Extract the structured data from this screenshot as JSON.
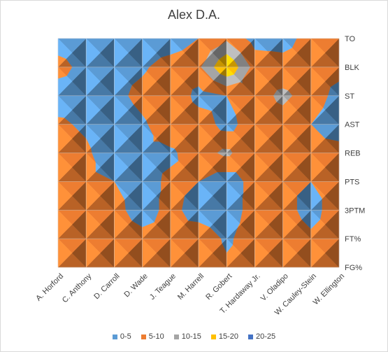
{
  "chart_data": {
    "type": "heatmap",
    "subtype": "contour",
    "title": "Alex D.A.",
    "xlabel": "",
    "ylabel": "",
    "categories": [
      "A. Horford",
      "C. Anthony",
      "D. Carroll",
      "D. Wade",
      "J. Teague",
      "M. Harrell",
      "R. Gobert",
      "T. Hardaway Jr.",
      "V. Oladipo",
      "W. Cauley-Stein",
      "W. Ellington"
    ],
    "y_categories": [
      "FG%",
      "FT%",
      "3PTM",
      "PTS",
      "REB",
      "AST",
      "ST",
      "BLK",
      "TO"
    ],
    "legend_position": "bottom",
    "grid": true,
    "bands": [
      {
        "label": "0-5",
        "min": 0,
        "max": 5,
        "color": "#5b9bd5"
      },
      {
        "label": "5-10",
        "min": 5,
        "max": 10,
        "color": "#ed7d31"
      },
      {
        "label": "10-15",
        "min": 10,
        "max": 15,
        "color": "#a5a5a5"
      },
      {
        "label": "15-20",
        "min": 15,
        "max": 20,
        "color": "#ffc000"
      },
      {
        "label": "20-25",
        "min": 20,
        "max": 25,
        "color": "#4472c4"
      }
    ],
    "rows": {
      "FG%": [
        6,
        7,
        7,
        7,
        8,
        9,
        6,
        7,
        7,
        7,
        7
      ],
      "FT%": [
        8,
        8,
        8,
        7,
        6,
        9,
        4,
        8,
        8,
        6,
        7
      ],
      "3PTM": [
        8,
        8,
        7,
        2,
        7,
        2,
        1,
        8,
        7,
        3,
        8
      ],
      "PTS": [
        7,
        6,
        5,
        3,
        6,
        5,
        2,
        7,
        5,
        5,
        6
      ],
      "REB": [
        8,
        6,
        1,
        4,
        4,
        8,
        11,
        6,
        8,
        6,
        7
      ],
      "AST": [
        6,
        4,
        1,
        4,
        9,
        8,
        3,
        8,
        8,
        5,
        2
      ],
      "ST": [
        2,
        3,
        3,
        7,
        10,
        3,
        5,
        8,
        11,
        8,
        3
      ],
      "BLK": [
        7,
        3,
        3,
        4,
        8,
        9,
        20,
        8,
        7,
        7,
        7
      ],
      "TO": [
        2,
        2,
        2,
        1,
        1,
        5,
        9,
        3,
        3,
        7,
        7
      ]
    }
  }
}
